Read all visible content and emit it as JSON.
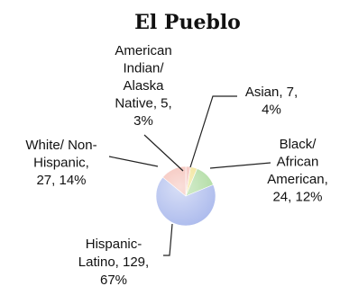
{
  "chart_data": {
    "type": "pie",
    "title": "El Pueblo",
    "slices": [
      {
        "label": [
          "American",
          "Indian/",
          "Alaska",
          "Native, 5,",
          "3%"
        ],
        "value": 5,
        "percent": 3,
        "color": "#f2b8b0"
      },
      {
        "label": [
          "Asian, 7,",
          "4%"
        ],
        "value": 7,
        "percent": 4,
        "color": "#f0e08a"
      },
      {
        "label": [
          "Black/",
          "African",
          "American,",
          "24, 12%"
        ],
        "value": 24,
        "percent": 12,
        "color": "#a9d99a"
      },
      {
        "label": [
          "Hispanic-",
          "Latino, 129,",
          "67%"
        ],
        "value": 129,
        "percent": 67,
        "color": "#a9b8ec"
      },
      {
        "label": [
          "White/ Non-",
          "Hispanic,",
          "27, 14%"
        ],
        "value": 27,
        "percent": 14,
        "color": "#f3b7ad"
      }
    ]
  }
}
